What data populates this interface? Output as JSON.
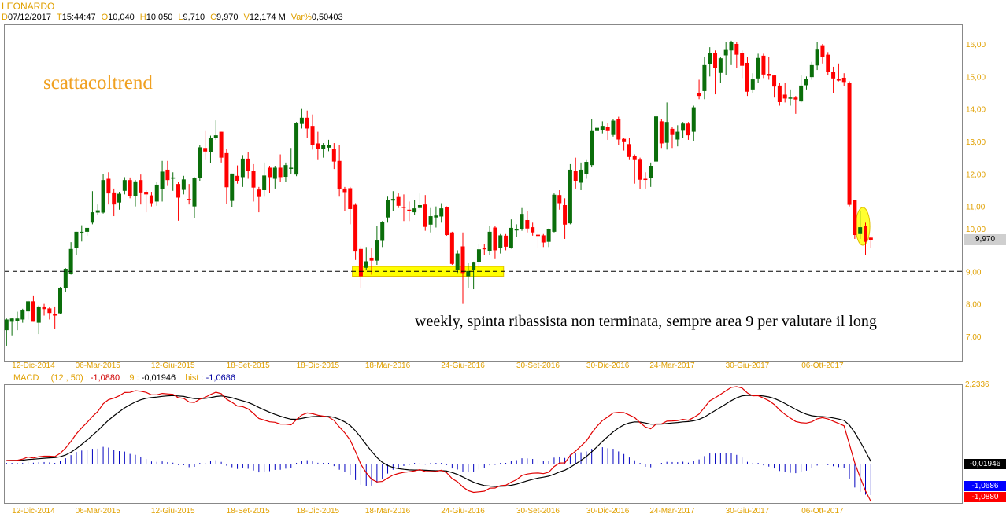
{
  "header": {
    "symbol": "LEONARDO",
    "fields": [
      {
        "key": "D",
        "value": "07/12/2017"
      },
      {
        "key": "T",
        "value": "15:44:47"
      },
      {
        "key": "O",
        "value": "10,040"
      },
      {
        "key": "H",
        "value": "10,050"
      },
      {
        "key": "L",
        "value": "9,710"
      },
      {
        "key": "C",
        "value": "9,970"
      },
      {
        "key": "V",
        "value": "12,174 M"
      },
      {
        "key": "Var%",
        "value": "0,50403"
      }
    ]
  },
  "annotations": {
    "brand": "scattacoltrend",
    "note": "weekly, spinta ribassista non terminata, sempre area 9 per valutare il long",
    "support_level": 9.0,
    "highlight_zone": {
      "from_candle": 66,
      "to_candle": 93,
      "low": 8.85,
      "high": 9.15
    },
    "highlight_circle_candles": [
      160,
      161
    ]
  },
  "macd": {
    "label": "MACD",
    "params": "(12 , 50) :",
    "macd_value": "-1,0880",
    "signal_label": "9 :",
    "signal_value": "-0,01946",
    "hist_label": "hist :",
    "hist_value": "-1,0686",
    "axis_top": "2,2336",
    "fast": 12,
    "slow": 50,
    "signal": 9,
    "colors": {
      "macd": "#e00000",
      "signal": "#000000",
      "hist": "#0000c0"
    }
  },
  "price_tag": "9,970",
  "colors": {
    "up": "#0a6e0a",
    "down": "#ff0000",
    "axis_text": "#e0a000"
  },
  "chart_data": {
    "type": "candlestick",
    "title": "LEONARDO",
    "timeframe": "weekly",
    "ylim": [
      6.6,
      16.6
    ],
    "y_ticks": [
      {
        "value": 16,
        "label": "16,00"
      },
      {
        "value": 15,
        "label": "15,00"
      },
      {
        "value": 14,
        "label": "14,00"
      },
      {
        "value": 13,
        "label": "13,00"
      },
      {
        "value": 12,
        "label": "12,00"
      },
      {
        "value": 11,
        "label": "11,00"
      },
      {
        "value": 10,
        "label": "10,00"
      },
      {
        "value": 9,
        "label": "9,00"
      },
      {
        "value": 8,
        "label": "8,00"
      },
      {
        "value": 7,
        "label": "7,00"
      }
    ],
    "x_labels": [
      {
        "label": "12-Dic-2014",
        "candle": 6
      },
      {
        "label": "06-Mar-2015",
        "candle": 18
      },
      {
        "label": "12-Giu-2015",
        "candle": 32
      },
      {
        "label": "18-Set-2015",
        "candle": 46
      },
      {
        "label": "18-Dic-2015",
        "candle": 59
      },
      {
        "label": "18-Mar-2016",
        "candle": 72
      },
      {
        "label": "24-Giu-2016",
        "candle": 86
      },
      {
        "label": "30-Set-2016",
        "candle": 100
      },
      {
        "label": "30-Dic-2016",
        "candle": 113
      },
      {
        "label": "24-Mar-2017",
        "candle": 125
      },
      {
        "label": "30-Giu-2017",
        "candle": 139
      },
      {
        "label": "06-Ott-2017",
        "candle": 153
      }
    ],
    "ohlc_fields": [
      "open",
      "high",
      "low",
      "close"
    ],
    "candles": [
      [
        7.19,
        7.55,
        6.71,
        7.52
      ],
      [
        7.45,
        7.58,
        7.03,
        7.55
      ],
      [
        7.47,
        7.76,
        7.19,
        7.55
      ],
      [
        7.52,
        7.85,
        7.42,
        7.8
      ],
      [
        7.77,
        8.1,
        7.52,
        8.08
      ],
      [
        8.08,
        8.26,
        7.45,
        7.45
      ],
      [
        7.42,
        7.95,
        7.07,
        7.92
      ],
      [
        7.92,
        8.0,
        7.64,
        7.84
      ],
      [
        7.86,
        7.9,
        7.52,
        7.72
      ],
      [
        7.68,
        7.92,
        7.23,
        7.64
      ],
      [
        7.71,
        8.52,
        7.68,
        8.5
      ],
      [
        8.48,
        9.1,
        8.36,
        9.08
      ],
      [
        8.93,
        9.9,
        8.9,
        9.69
      ],
      [
        9.72,
        10.22,
        9.5,
        10.22
      ],
      [
        10.18,
        10.42,
        9.92,
        10.22
      ],
      [
        10.22,
        10.34,
        10.1,
        10.34
      ],
      [
        10.5,
        11.47,
        10.45,
        10.82
      ],
      [
        10.81,
        11.06,
        10.75,
        10.88
      ],
      [
        10.81,
        12.0,
        10.78,
        11.81
      ],
      [
        11.85,
        12.05,
        11.06,
        11.4
      ],
      [
        11.43,
        11.55,
        10.7,
        11.06
      ],
      [
        11.12,
        11.45,
        10.9,
        11.39
      ],
      [
        11.48,
        11.9,
        11.37,
        11.81
      ],
      [
        11.81,
        11.89,
        11.25,
        11.32
      ],
      [
        11.33,
        11.81,
        11.0,
        11.77
      ],
      [
        11.81,
        11.98,
        11.06,
        11.43
      ],
      [
        11.45,
        11.5,
        10.82,
        11.37
      ],
      [
        11.34,
        11.45,
        11.0,
        11.1
      ],
      [
        11.15,
        11.75,
        11.02,
        11.67
      ],
      [
        11.53,
        12.4,
        11.15,
        12.07
      ],
      [
        12.13,
        12.4,
        11.63,
        11.81
      ],
      [
        11.86,
        12.05,
        11.48,
        11.89
      ],
      [
        11.69,
        11.75,
        10.56,
        11.27
      ],
      [
        11.51,
        11.94,
        11.37,
        11.83
      ],
      [
        11.23,
        11.69,
        11.06,
        11.21
      ],
      [
        11.0,
        11.9,
        10.65,
        11.87
      ],
      [
        11.87,
        12.88,
        11.79,
        12.82
      ],
      [
        12.8,
        13.32,
        12.45,
        12.69
      ],
      [
        12.68,
        13.18,
        12.34,
        13.12
      ],
      [
        13.12,
        13.65,
        13.05,
        13.19
      ],
      [
        13.3,
        13.3,
        12.35,
        12.5
      ],
      [
        12.64,
        12.76,
        11.08,
        11.59
      ],
      [
        11.17,
        12.01,
        10.98,
        12.01
      ],
      [
        11.94,
        12.26,
        11.7,
        11.79
      ],
      [
        11.9,
        12.58,
        11.6,
        12.47
      ],
      [
        12.47,
        12.68,
        11.85,
        12.1
      ],
      [
        12.1,
        12.3,
        11.15,
        11.58
      ],
      [
        11.52,
        11.6,
        10.82,
        11.29
      ],
      [
        11.5,
        12.35,
        11.3,
        11.95
      ],
      [
        12.19,
        12.25,
        11.42,
        11.9
      ],
      [
        11.85,
        12.25,
        11.55,
        12.19
      ],
      [
        12.19,
        12.6,
        11.75,
        11.9
      ],
      [
        11.91,
        12.35,
        11.75,
        12.27
      ],
      [
        12.17,
        12.8,
        12.0,
        12.19
      ],
      [
        11.98,
        13.6,
        11.93,
        13.56
      ],
      [
        13.54,
        14.0,
        13.4,
        13.73
      ],
      [
        13.73,
        13.95,
        13.1,
        13.4
      ],
      [
        13.48,
        13.83,
        12.75,
        12.88
      ],
      [
        12.94,
        13.3,
        12.45,
        12.76
      ],
      [
        12.76,
        12.95,
        12.5,
        12.88
      ],
      [
        12.81,
        13.05,
        12.7,
        12.9
      ],
      [
        12.76,
        12.95,
        12.15,
        12.38
      ],
      [
        12.4,
        12.9,
        11.3,
        11.53
      ],
      [
        11.55,
        11.6,
        10.85,
        11.44
      ],
      [
        11.56,
        11.6,
        10.45,
        10.92
      ],
      [
        11.05,
        11.1,
        9.35,
        9.61
      ],
      [
        9.69,
        9.77,
        8.5,
        8.85
      ],
      [
        9.11,
        9.75,
        9.05,
        9.31
      ],
      [
        9.42,
        9.73,
        8.9,
        9.33
      ],
      [
        9.33,
        10.4,
        9.2,
        9.95
      ],
      [
        9.94,
        10.55,
        9.75,
        10.53
      ],
      [
        10.66,
        11.3,
        10.5,
        11.19
      ],
      [
        11.18,
        11.47,
        10.85,
        11.23
      ],
      [
        11.29,
        11.4,
        10.95,
        11.02
      ],
      [
        10.99,
        11.37,
        10.55,
        10.96
      ],
      [
        10.9,
        11.15,
        10.55,
        10.86
      ],
      [
        10.82,
        11.2,
        10.75,
        10.94
      ],
      [
        10.95,
        11.4,
        10.9,
        11.04
      ],
      [
        11.06,
        11.35,
        10.25,
        10.37
      ],
      [
        10.44,
        10.95,
        10.2,
        10.7
      ],
      [
        10.66,
        11.0,
        10.35,
        10.72
      ],
      [
        10.69,
        11.1,
        10.5,
        10.94
      ],
      [
        10.97,
        11.0,
        10.1,
        10.12
      ],
      [
        10.2,
        10.22,
        9.2,
        9.23
      ],
      [
        9.05,
        9.65,
        8.95,
        9.55
      ],
      [
        9.77,
        10.2,
        8.0,
        8.95
      ],
      [
        8.85,
        9.25,
        8.5,
        9.01
      ],
      [
        9.05,
        9.3,
        8.45,
        9.27
      ],
      [
        9.29,
        9.85,
        9.1,
        9.68
      ],
      [
        9.73,
        9.85,
        9.5,
        9.68
      ],
      [
        9.63,
        10.4,
        9.5,
        10.22
      ],
      [
        10.35,
        10.4,
        9.4,
        9.65
      ],
      [
        9.73,
        10.15,
        9.55,
        10.11
      ],
      [
        10.1,
        10.15,
        9.65,
        9.76
      ],
      [
        9.72,
        10.6,
        9.7,
        10.34
      ],
      [
        10.26,
        10.45,
        10.05,
        10.31
      ],
      [
        10.3,
        10.95,
        10.25,
        10.77
      ],
      [
        10.58,
        10.85,
        10.2,
        10.32
      ],
      [
        10.36,
        10.5,
        10.1,
        10.2
      ],
      [
        10.13,
        10.25,
        9.7,
        10.09
      ],
      [
        10.11,
        10.15,
        9.75,
        9.89
      ],
      [
        9.91,
        10.32,
        9.75,
        10.3
      ],
      [
        10.22,
        11.4,
        10.2,
        11.36
      ],
      [
        11.35,
        11.5,
        10.9,
        11.1
      ],
      [
        11.04,
        11.25,
        10.0,
        10.44
      ],
      [
        10.48,
        12.3,
        10.45,
        12.13
      ],
      [
        12.1,
        12.5,
        11.55,
        11.79
      ],
      [
        11.73,
        12.35,
        11.5,
        12.13
      ],
      [
        11.99,
        12.45,
        11.85,
        12.37
      ],
      [
        12.27,
        13.7,
        12.2,
        13.32
      ],
      [
        13.32,
        13.62,
        13.1,
        13.42
      ],
      [
        13.35,
        13.62,
        13.25,
        13.48
      ],
      [
        13.44,
        13.58,
        13.05,
        13.32
      ],
      [
        13.2,
        13.7,
        13.15,
        13.64
      ],
      [
        13.68,
        13.76,
        12.9,
        13.06
      ],
      [
        13.08,
        13.1,
        12.72,
        12.98
      ],
      [
        12.92,
        13.1,
        12.45,
        12.52
      ],
      [
        12.56,
        12.6,
        11.7,
        12.45
      ],
      [
        12.46,
        12.5,
        11.53,
        11.82
      ],
      [
        11.85,
        12.05,
        11.55,
        11.82
      ],
      [
        11.87,
        12.35,
        11.6,
        12.25
      ],
      [
        12.38,
        13.85,
        12.35,
        13.77
      ],
      [
        13.62,
        13.7,
        12.8,
        12.94
      ],
      [
        12.96,
        14.2,
        12.75,
        13.6
      ],
      [
        13.39,
        13.45,
        12.8,
        13.2
      ],
      [
        13.06,
        13.5,
        12.85,
        13.3
      ],
      [
        13.33,
        13.6,
        13.1,
        13.55
      ],
      [
        13.55,
        13.6,
        13.05,
        13.19
      ],
      [
        13.3,
        14.1,
        13.0,
        14.05
      ],
      [
        14.5,
        14.9,
        14.3,
        14.4
      ],
      [
        14.55,
        15.6,
        14.3,
        15.35
      ],
      [
        15.38,
        15.9,
        15.0,
        15.71
      ],
      [
        15.71,
        15.8,
        14.45,
        15.26
      ],
      [
        15.11,
        15.6,
        14.8,
        15.56
      ],
      [
        15.65,
        16.05,
        15.05,
        15.84
      ],
      [
        15.8,
        16.1,
        15.35,
        16.05
      ],
      [
        16.0,
        16.05,
        15.25,
        15.67
      ],
      [
        15.71,
        15.8,
        14.95,
        15.33
      ],
      [
        15.42,
        15.6,
        14.4,
        14.53
      ],
      [
        14.6,
        15.1,
        14.5,
        14.91
      ],
      [
        14.94,
        15.7,
        14.8,
        15.57
      ],
      [
        15.64,
        15.7,
        14.95,
        15.06
      ],
      [
        15.08,
        15.6,
        14.9,
        15.02
      ],
      [
        15.03,
        15.05,
        14.35,
        14.69
      ],
      [
        14.72,
        14.8,
        14.1,
        14.21
      ],
      [
        14.44,
        14.8,
        14.2,
        14.32
      ],
      [
        14.32,
        14.6,
        14.1,
        14.35
      ],
      [
        14.35,
        14.4,
        13.85,
        14.29
      ],
      [
        14.23,
        15.05,
        14.2,
        14.72
      ],
      [
        14.73,
        15.0,
        14.6,
        14.92
      ],
      [
        14.98,
        15.45,
        14.9,
        15.35
      ],
      [
        15.34,
        16.07,
        15.2,
        15.85
      ],
      [
        15.96,
        16.0,
        15.4,
        15.61
      ],
      [
        15.67,
        15.75,
        15.05,
        15.15
      ],
      [
        15.14,
        15.3,
        14.5,
        14.94
      ],
      [
        14.91,
        15.4,
        14.85,
        14.89
      ],
      [
        14.96,
        15.1,
        14.7,
        14.83
      ],
      [
        14.81,
        14.85,
        11.0,
        11.05
      ],
      [
        11.19,
        11.19,
        10.0,
        10.12
      ],
      [
        10.15,
        10.85,
        10.0,
        10.36
      ],
      [
        10.39,
        10.5,
        9.5,
        9.91
      ],
      [
        10.04,
        10.05,
        9.71,
        9.97
      ]
    ]
  }
}
